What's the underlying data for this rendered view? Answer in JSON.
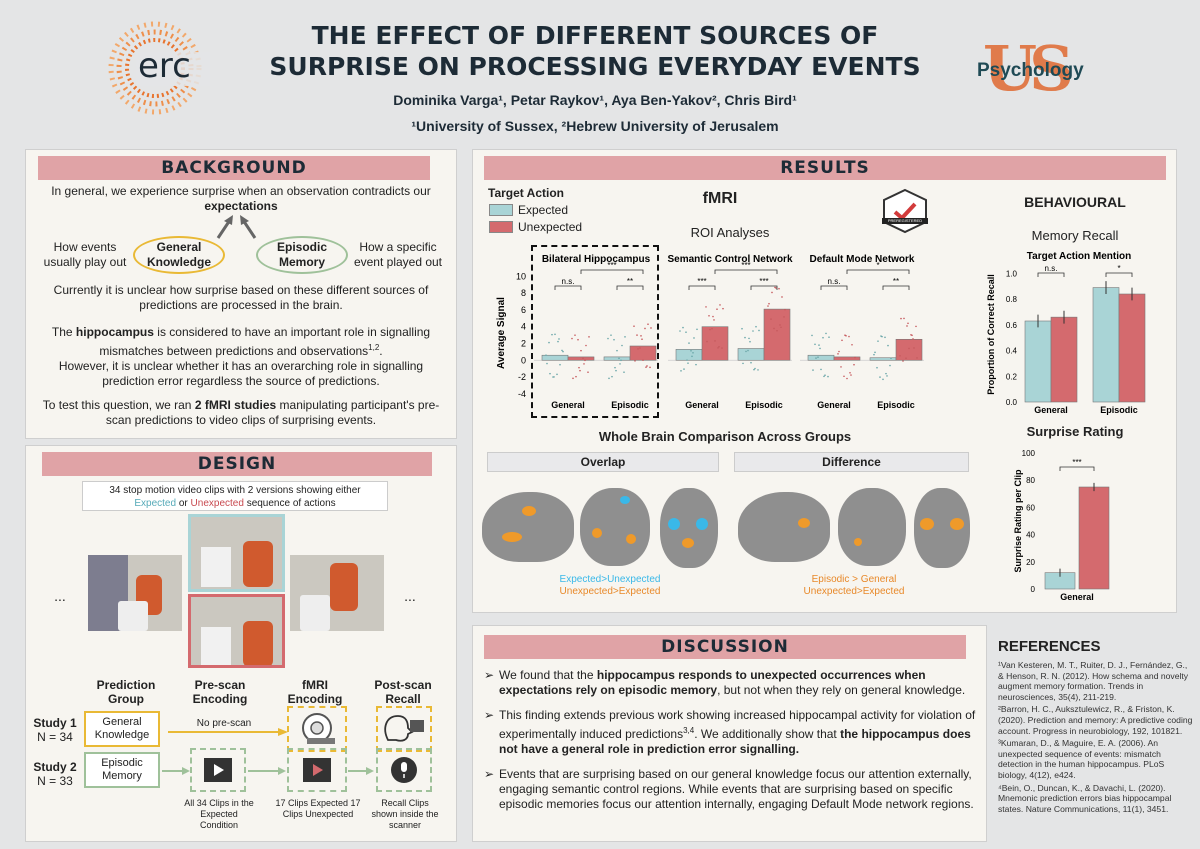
{
  "header": {
    "title_line1": "THE EFFECT OF DIFFERENT SOURCES OF",
    "title_line2": "SURPRISE ON PROCESSING EVERYDAY EVENTS",
    "authors": "Dominika Varga¹, Petar Raykov¹, Aya Ben-Yakov², Chris Bird¹",
    "affiliations": "¹University of Sussex, ²Hebrew University of Jerusalem",
    "logo_left": "erc",
    "logo_right": "Psychology"
  },
  "background": {
    "title": "BACKGROUND",
    "p1": "In general, we experience surprise when an observation contradicts our",
    "p1_bold": "expectations",
    "left_note": "How events usually play out",
    "right_note": "How a specific event played out",
    "oval1": "General Knowledge",
    "oval2": "Episodic Memory",
    "p2": "Currently it is unclear how surprise based on these different sources of predictions are processed in the brain.",
    "p3a": "The",
    "p3_bold": "hippocampus",
    "p3b": "is considered to have an important role in signalling mismatches between predictions and observations",
    "p3_sup": "1,2",
    "p3c": "However, it is unclear whether it has an overarching role in signalling prediction error regardless the source of predictions.",
    "p4a": "To test this question, we ran",
    "p4_bold": "2 fMRI studies",
    "p4b": "manipulating participant's pre-scan predictions to video clips of surprising events."
  },
  "design": {
    "title": "DESIGN",
    "clip_note_line1": "34 stop motion video clips with 2 versions showing either",
    "clip_expected": "Expected",
    "clip_or": "or",
    "clip_unexpected": "Unexpected",
    "clip_tail": "sequence of actions",
    "ellipsis": "...",
    "col_headers": [
      "Prediction Group",
      "Pre-scan Encoding",
      "fMRI Encoding",
      "Post-scan Recall"
    ],
    "study1": "Study 1",
    "study1_n": "N = 34",
    "study2": "Study 2",
    "study2_n": "N = 33",
    "group1": "General Knowledge",
    "group2": "Episodic Memory",
    "no_prescan": "No pre-scan",
    "note_prescan": "All 34 Clips in the Expected Condition",
    "note_fmri": "17 Clips Expected 17 Clips Unexpected",
    "note_recall": "Recall Clips shown inside the scanner"
  },
  "results": {
    "title": "RESULTS",
    "legend_title": "Target Action",
    "legend_expected": "Expected",
    "legend_unexpected": "Unexpected",
    "fmri": "fMRI",
    "roi": "ROI Analyses",
    "behavioural": "BEHAVIOURAL",
    "memory_recall": "Memory Recall",
    "badge": "PREREGISTERED",
    "whole_brain": "Whole Brain Comparison Across Groups",
    "overlap": "Overlap",
    "difference": "Difference",
    "overlap_legend1": "Expected>Unexpected",
    "overlap_legend2": "Unexpected>Expected",
    "diff_legend1": "Episodic > General",
    "diff_legend2": "Unexpected>Expected",
    "surprise_rating": "Surprise Rating"
  },
  "colors": {
    "expected": "#a9d4d6",
    "unexpected": "#d46a6e",
    "accent": "#e0a3a6",
    "navy": "#1d2b36",
    "gold": "#e9b935",
    "green": "#9fc19a"
  },
  "chart_data": [
    {
      "type": "bar",
      "title": "Bilateral Hippocampus",
      "categories": [
        "General",
        "Episodic"
      ],
      "ylabel": "Average Signal",
      "ylim": [
        -4.5,
        11
      ],
      "yticks": [
        -4,
        -2,
        0,
        2,
        4,
        6,
        8,
        10
      ],
      "series": [
        {
          "name": "Expected",
          "values": [
            0.6,
            0.4
          ]
        },
        {
          "name": "Unexpected",
          "values": [
            0.4,
            1.7
          ]
        }
      ],
      "annotations": [
        "n.s.",
        "***",
        "**"
      ]
    },
    {
      "type": "bar",
      "title": "Semantic Control Network",
      "categories": [
        "General",
        "Episodic"
      ],
      "ylim": [
        -4.5,
        11
      ],
      "series": [
        {
          "name": "Expected",
          "values": [
            1.3,
            1.4
          ]
        },
        {
          "name": "Unexpected",
          "values": [
            4.0,
            6.1
          ]
        }
      ],
      "annotations": [
        "***",
        "***",
        "***"
      ]
    },
    {
      "type": "bar",
      "title": "Default Mode Network",
      "categories": [
        "General",
        "Episodic"
      ],
      "ylim": [
        -4.5,
        11
      ],
      "series": [
        {
          "name": "Expected",
          "values": [
            0.6,
            0.3
          ]
        },
        {
          "name": "Unexpected",
          "values": [
            0.4,
            2.5
          ]
        }
      ],
      "annotations": [
        "n.s.",
        "*",
        "**"
      ]
    },
    {
      "type": "bar",
      "title": "Target Action Mention",
      "categories": [
        "General",
        "Episodic"
      ],
      "ylabel": "Proportion of Correct Recall",
      "ylim": [
        0,
        1.05
      ],
      "yticks": [
        0.0,
        0.2,
        0.4,
        0.6,
        0.8,
        1.0
      ],
      "series": [
        {
          "name": "Expected",
          "values": [
            0.63,
            0.89
          ]
        },
        {
          "name": "Unexpected",
          "values": [
            0.66,
            0.84
          ]
        }
      ],
      "annotations": [
        "n.s.",
        "*"
      ]
    },
    {
      "type": "bar",
      "title": "Surprise Rating",
      "categories": [
        "General"
      ],
      "ylabel": "Surprise Rating per Clip",
      "ylim": [
        0,
        100
      ],
      "yticks": [
        0,
        20,
        40,
        60,
        80,
        100
      ],
      "series": [
        {
          "name": "Expected",
          "values": [
            12
          ]
        },
        {
          "name": "Unexpected",
          "values": [
            75
          ]
        }
      ],
      "annotations": [
        "***"
      ]
    }
  ],
  "discussion": {
    "title": "DISCUSSION",
    "b1a": "We found that the",
    "b1_bold": "hippocampus responds to unexpected occurrences when expectations rely on episodic memory",
    "b1b": ", but not when they rely on general knowledge.",
    "b2a": "This finding extends previous work showing increased hippocampal activity for violation of experimentally induced predictions",
    "b2_sup": "3,4",
    "b2b": ". We additionally show that",
    "b2_bold": "the hippocampus does not have a general role in prediction error signalling.",
    "b3": "Events that are surprising based on our general knowledge focus our attention externally, engaging semantic control regions. While events that are surprising based on specific episodic memories focus our attention internally, engaging Default Mode network regions."
  },
  "references": {
    "title": "REFERENCES",
    "items": [
      "¹Van Kesteren, M. T., Ruiter, D. J., Fernández, G., & Henson, R. N. (2012). How schema and novelty augment memory formation. Trends in neurosciences, 35(4), 211-219.",
      "²Barron, H. C., Auksztulewicz, R., & Friston, K. (2020). Prediction and memory: A predictive coding account. Progress in neurobiology, 192, 101821.",
      "³Kumaran, D., & Maguire, E. A. (2006). An unexpected sequence of events: mismatch detection in the human hippocampus. PLoS biology, 4(12), e424.",
      "⁴Bein, O., Duncan, K., & Davachi, L. (2020). Mnemonic prediction errors bias hippocampal states. Nature Communications, 11(1), 3451."
    ]
  }
}
